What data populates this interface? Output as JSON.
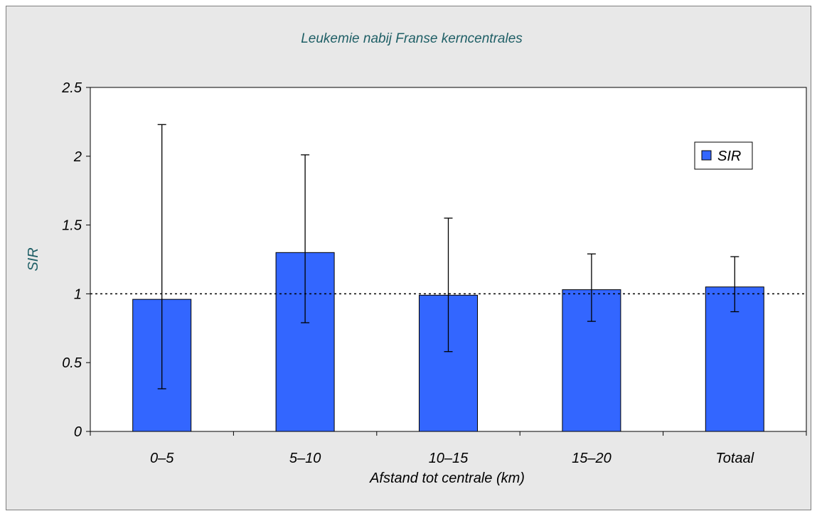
{
  "chart_data": {
    "type": "bar",
    "title": "Leukemie nabij Franse kerncentrales",
    "xlabel": "Afstand tot centrale (km)",
    "ylabel": "SIR",
    "categories": [
      "0–5",
      "5–10",
      "10–15",
      "15–20",
      "Totaal"
    ],
    "series": [
      {
        "name": "SIR",
        "values": [
          0.96,
          1.3,
          0.99,
          1.03,
          1.05
        ],
        "error_low": [
          0.31,
          0.79,
          0.58,
          0.8,
          0.87
        ],
        "error_high": [
          2.23,
          2.01,
          1.55,
          1.29,
          1.27
        ]
      }
    ],
    "reference_line": 1.0,
    "ylim": [
      0,
      2.5
    ],
    "yticks": [
      0,
      0.5,
      1,
      1.5,
      2,
      2.5
    ],
    "ytick_labels": [
      "0",
      "0.5",
      "1",
      "1.5",
      "2",
      "2.5"
    ],
    "grid": false,
    "legend_position": "top-right",
    "colors": {
      "bar": "#3366ff",
      "background": "#e8e8e8",
      "plot_area": "#ffffff",
      "title": "#1f5f66"
    }
  }
}
